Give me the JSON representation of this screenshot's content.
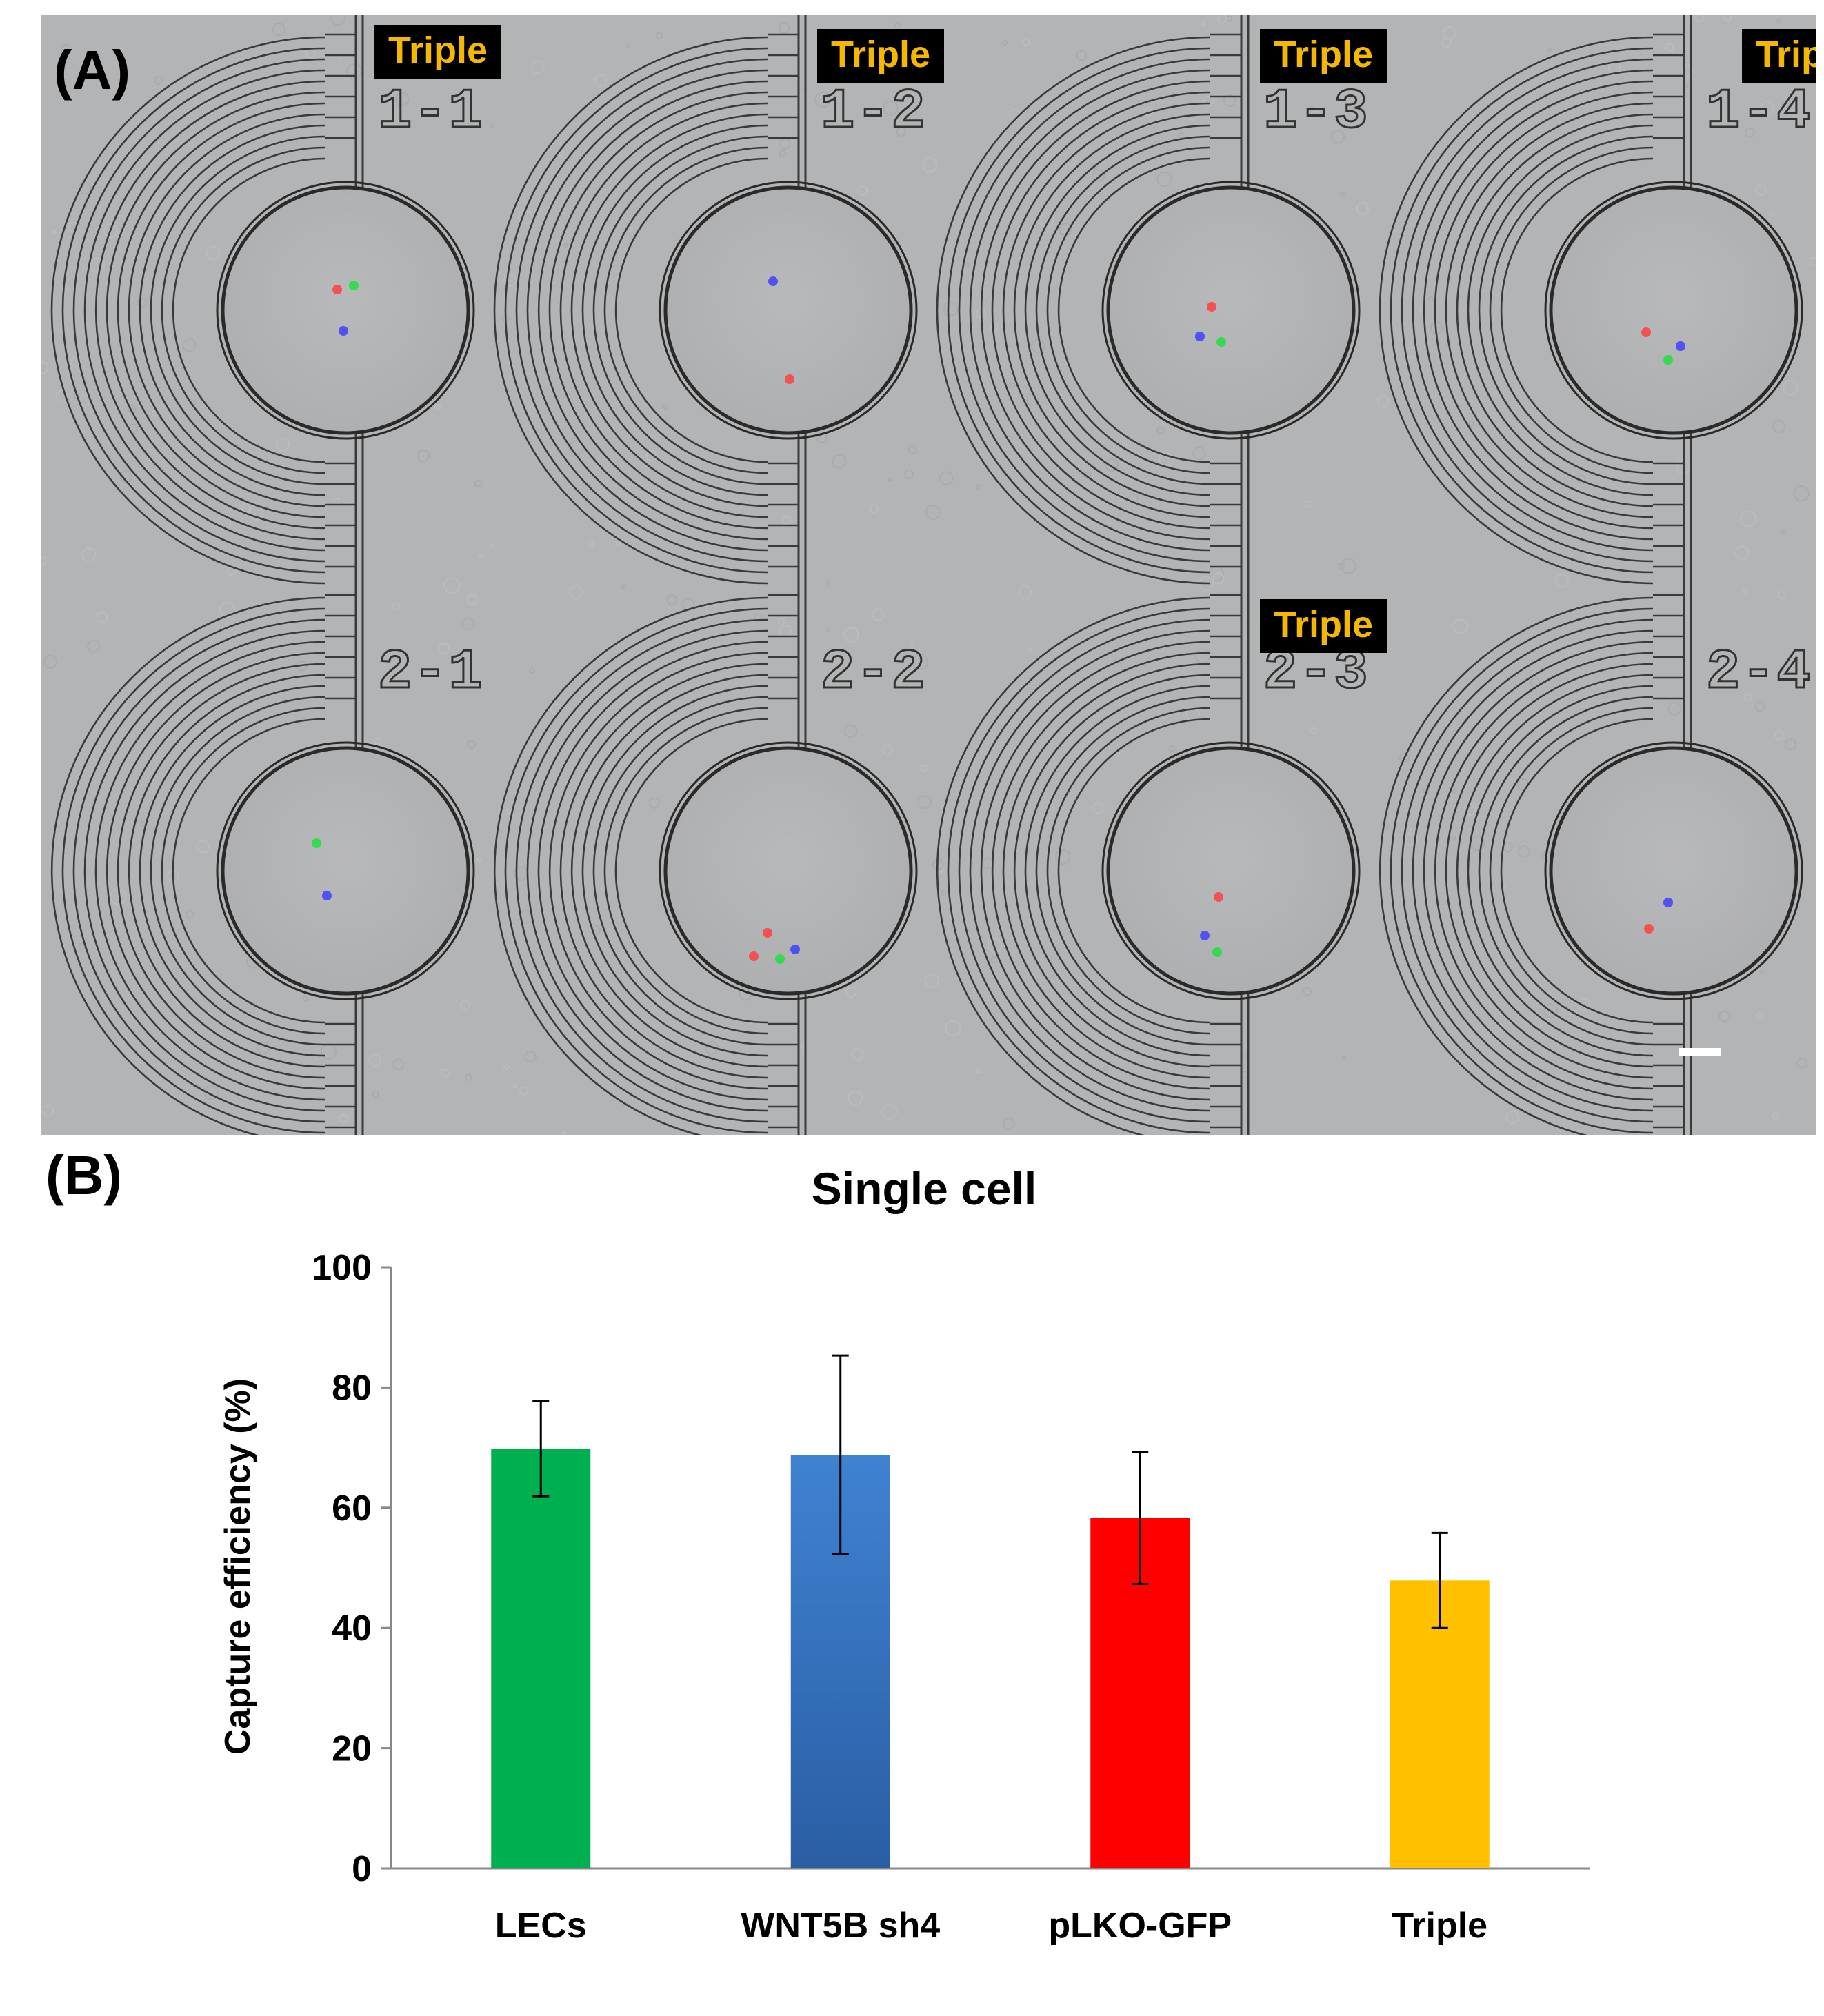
{
  "panel_a": {
    "label": "(A)",
    "wells": [
      {
        "id": "1-1",
        "tag": "Triple"
      },
      {
        "id": "1-2",
        "tag": "Triple"
      },
      {
        "id": "1-3",
        "tag": "Triple"
      },
      {
        "id": "1-4",
        "tag": "Triple"
      },
      {
        "id": "2-1",
        "tag": ""
      },
      {
        "id": "2-2",
        "tag": ""
      },
      {
        "id": "2-3",
        "tag": "Triple"
      },
      {
        "id": "2-4",
        "tag": ""
      }
    ],
    "colors": {
      "background": "#b3b4b6",
      "channel": "#3a3a3a",
      "tag_bg": "#000000",
      "tag_text": "#f5b800"
    }
  },
  "panel_b": {
    "label": "(B)"
  },
  "chart_data": {
    "type": "bar",
    "title": "Single cell",
    "xlabel": "",
    "ylabel": "Capture efficiency (%)",
    "ylim": [
      0,
      100
    ],
    "yticks": [
      0,
      20,
      40,
      60,
      80,
      100
    ],
    "categories": [
      "LECs",
      "WNT5B sh4",
      "pLKO-GFP",
      "Triple"
    ],
    "values": [
      69.8,
      68.8,
      58.3,
      47.9
    ],
    "errors": [
      7.9,
      16.5,
      11.0,
      7.9
    ],
    "colors": [
      "#00b050",
      "#3a7bc8",
      "#ff0000",
      "#ffc000"
    ],
    "grid": false,
    "legend": "none"
  }
}
